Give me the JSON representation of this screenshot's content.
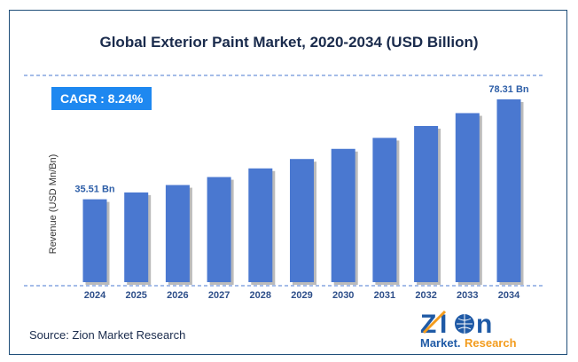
{
  "chart_data": {
    "type": "bar",
    "title": "Global Exterior Paint Market, 2020-2034 (USD Billion)",
    "ylabel": "Revenue (USD Mn/Bn)",
    "xlabel": "",
    "categories": [
      "2024",
      "2025",
      "2026",
      "2027",
      "2028",
      "2029",
      "2030",
      "2031",
      "2032",
      "2033",
      "2034"
    ],
    "values": [
      35.51,
      38.44,
      41.61,
      45.03,
      48.74,
      52.76,
      57.11,
      61.81,
      66.91,
      72.42,
      78.31
    ],
    "data_labels": {
      "first": "35.51 Bn",
      "last": "78.31 Bn"
    },
    "ylim": [
      0,
      78.31
    ],
    "grid": false,
    "bar_color": "#4a78d0",
    "label_color": "#2e5fa8"
  },
  "cagr": "CAGR : 8.24%",
  "source": "Source: Zion Market Research",
  "logo": {
    "top": "Zion",
    "bottom_left": "Market.",
    "bottom_right": "Research"
  }
}
